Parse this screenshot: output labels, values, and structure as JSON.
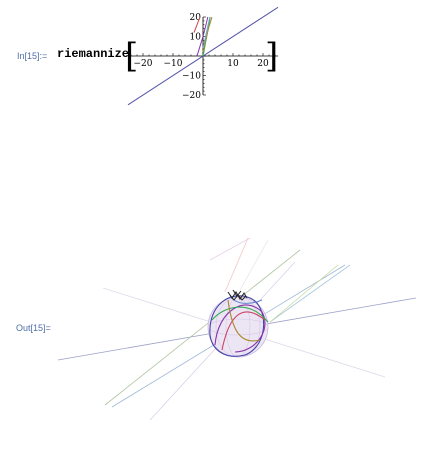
{
  "notebook": {
    "input_label": "In[15]:=",
    "function_name": "riemannize",
    "open_bracket": "[",
    "close_bracket": "]",
    "output_label": "Out[15]="
  },
  "chart_data": {
    "type": "line",
    "xlim": [
      -25,
      25
    ],
    "ylim": [
      -20,
      20
    ],
    "x_ticks": [
      "-20",
      "-10",
      "10",
      "20"
    ],
    "y_ticks": [
      "20",
      "10",
      "-10",
      "-20"
    ],
    "grid": false,
    "series": [
      {
        "color": "#5555aa",
        "points": [
          [
            -25,
            -25
          ],
          [
            25,
            25
          ]
        ]
      },
      {
        "color": "#8833aa",
        "points": [
          [
            -2,
            0
          ],
          [
            -1,
            5
          ],
          [
            0,
            10
          ],
          [
            1,
            16
          ],
          [
            1.6,
            20
          ]
        ]
      },
      {
        "color": "#33aa44",
        "points": [
          [
            0,
            0
          ],
          [
            1,
            8
          ],
          [
            2,
            16
          ],
          [
            2.4,
            20
          ]
        ]
      },
      {
        "color": "#aa8833",
        "points": [
          [
            0,
            2
          ],
          [
            1,
            9
          ],
          [
            2,
            15
          ],
          [
            3,
            20
          ]
        ]
      },
      {
        "color": "#66aacc",
        "points": [
          [
            0,
            4
          ],
          [
            1,
            11
          ],
          [
            2,
            18
          ],
          [
            2.3,
            20
          ]
        ]
      },
      {
        "color": "#cc4444",
        "points": [
          [
            -3,
            12
          ],
          [
            -2,
            16
          ],
          [
            -1,
            20
          ]
        ]
      }
    ]
  },
  "colors": {
    "label_blue": "#4f6fa8",
    "line_purple": "#5555aa"
  }
}
